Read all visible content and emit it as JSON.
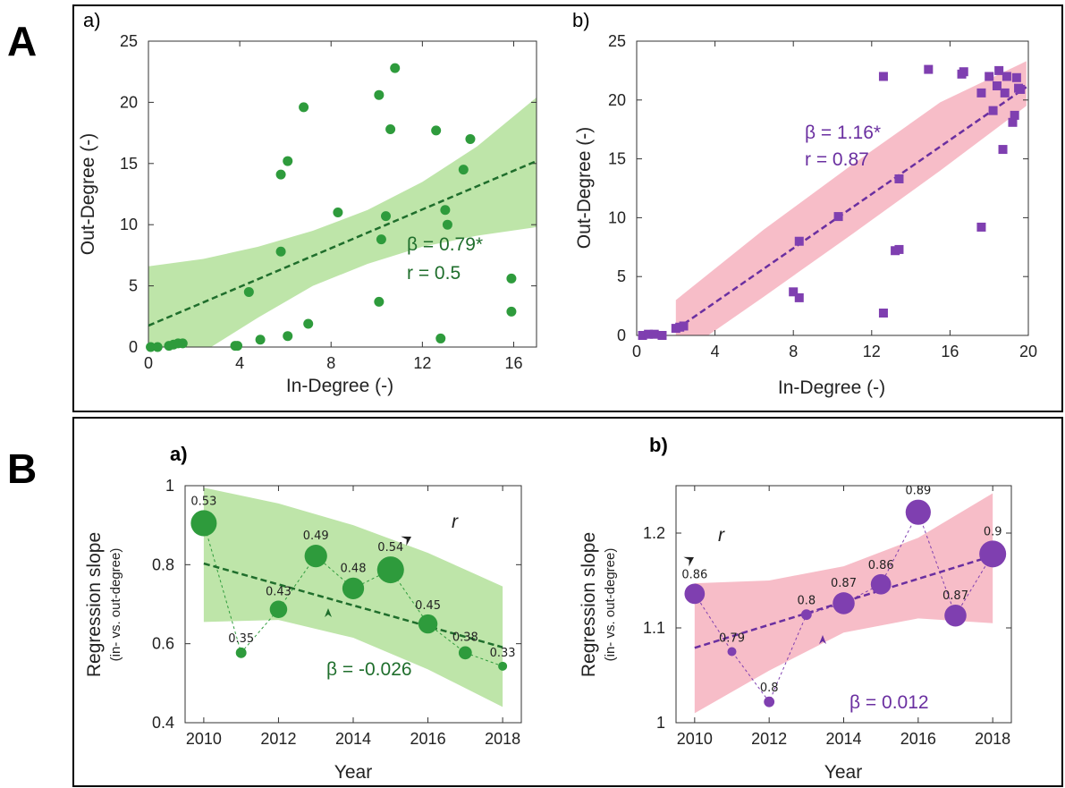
{
  "panels": {
    "A": {
      "letter": "A"
    },
    "B": {
      "letter": "B"
    }
  },
  "colors": {
    "green": "#2e9b3c",
    "green_dark": "#1f6e2c",
    "green_band": "#a8dc8c",
    "purple": "#7f3fb0",
    "purple_dark": "#6a2fa0",
    "pink_band": "#f4a7b5"
  },
  "chart_data": [
    {
      "id": "Aa",
      "type": "scatter",
      "sublabel": "a)",
      "xlabel": "In-Degree (-)",
      "ylabel": "Out-Degree (-)",
      "xlim": [
        0,
        17
      ],
      "ylim": [
        0,
        25
      ],
      "xticks": [
        0,
        4,
        8,
        12,
        16
      ],
      "yticks": [
        0,
        5,
        10,
        15,
        20,
        25
      ],
      "x": [
        0.1,
        0.4,
        0.9,
        1.1,
        1.3,
        1.5,
        3.8,
        3.9,
        4.4,
        4.9,
        5.8,
        5.8,
        6.1,
        6.1,
        6.8,
        7.0,
        8.3,
        10.1,
        10.1,
        10.2,
        10.4,
        10.6,
        10.8,
        12.6,
        12.8,
        13.0,
        13.1,
        13.8,
        14.1,
        15.9,
        15.9
      ],
      "y": [
        0.0,
        0.0,
        0.1,
        0.2,
        0.3,
        0.3,
        0.1,
        0.1,
        4.5,
        0.6,
        14.1,
        7.8,
        15.2,
        0.9,
        19.6,
        1.9,
        11.0,
        20.6,
        3.7,
        8.8,
        10.7,
        17.8,
        22.8,
        17.7,
        0.7,
        11.2,
        10.0,
        14.5,
        17.0,
        5.6,
        2.9
      ],
      "fit": {
        "x0": 0,
        "y0": 1.75,
        "x1": 17,
        "y1": 15.2
      },
      "band_upper": [
        6.6,
        7.2,
        8.2,
        9.5,
        11.2,
        13.5,
        16.4,
        20.4
      ],
      "band_lower": [
        -3.2,
        -0.4,
        2.4,
        5.0,
        6.8,
        8.2,
        9.1,
        9.8
      ],
      "band_x": [
        0,
        2.4,
        4.8,
        7.2,
        9.6,
        12.0,
        14.4,
        17
      ],
      "annotation": {
        "beta": "β = 0.79*",
        "r": "r = 0.5"
      }
    },
    {
      "id": "Ab",
      "type": "scatter",
      "sublabel": "b)",
      "xlabel": "In-Degree (-)",
      "ylabel": "Out-Degree (-)",
      "xlim": [
        0,
        20
      ],
      "ylim": [
        0,
        25
      ],
      "xticks": [
        0,
        4,
        8,
        12,
        16,
        20
      ],
      "yticks": [
        0,
        5,
        10,
        15,
        20,
        25
      ],
      "x": [
        0.3,
        0.6,
        0.9,
        1.3,
        2.0,
        2.2,
        2.4,
        8.0,
        8.3,
        8.3,
        10.3,
        12.6,
        12.6,
        13.2,
        13.4,
        13.4,
        14.9,
        16.6,
        16.7,
        17.6,
        17.6,
        18.0,
        18.2,
        18.4,
        18.5,
        18.7,
        18.8,
        18.9,
        19.2,
        19.3,
        19.4,
        19.5,
        19.6
      ],
      "y": [
        0.0,
        0.1,
        0.1,
        0.0,
        0.6,
        0.7,
        0.8,
        3.7,
        3.2,
        8.0,
        10.1,
        22.0,
        1.9,
        7.2,
        7.3,
        13.3,
        22.6,
        22.2,
        22.4,
        20.6,
        9.2,
        22.0,
        19.1,
        21.2,
        22.5,
        15.8,
        20.6,
        22.0,
        18.1,
        18.7,
        21.9,
        21.0,
        20.9
      ],
      "fit": {
        "x0": 2.0,
        "y0": 0.5,
        "x1": 19.9,
        "y1": 21.1
      },
      "band_upper": [
        3.0,
        9.0,
        14.5,
        19.8,
        23.3
      ],
      "band_lower": [
        -1.9,
        3.3,
        8.6,
        14.0,
        19.5
      ],
      "band_x": [
        2.0,
        6.5,
        11.0,
        15.5,
        19.9
      ],
      "annotation": {
        "beta": "β = 1.16*",
        "r": "r = 0.87"
      }
    },
    {
      "id": "Ba",
      "type": "line",
      "sublabel": "a)",
      "xlabel": "Year",
      "ylabel": "Regression slope",
      "ylabel_sub": "(in- vs. out-degree)",
      "xlim": [
        2009.5,
        2018.5
      ],
      "ylim": [
        0.4,
        1.0
      ],
      "xticks": [
        2010,
        2012,
        2014,
        2016,
        2018
      ],
      "yticks": [
        0.4,
        0.6,
        0.8,
        1.0
      ],
      "ytick_labels": [
        "0.4",
        "0.6",
        "0.8",
        "1"
      ],
      "x": [
        2010,
        2011,
        2012,
        2013,
        2014,
        2015,
        2016,
        2017,
        2018
      ],
      "y": [
        0.905,
        0.577,
        0.687,
        0.822,
        0.74,
        0.787,
        0.65,
        0.577,
        0.543
      ],
      "r_values": [
        "0.53",
        "0.35",
        "0.43",
        "0.49",
        "0.48",
        "0.54",
        "0.45",
        "0.38",
        "0.33"
      ],
      "r_numeric": [
        0.53,
        0.35,
        0.43,
        0.49,
        0.48,
        0.54,
        0.45,
        0.38,
        0.33
      ],
      "fit": {
        "x0": 2010,
        "y0": 0.803,
        "x1": 2018,
        "y1": 0.591
      },
      "band_x": [
        2010,
        2012,
        2014,
        2016,
        2018
      ],
      "band_upper": [
        0.995,
        0.955,
        0.9,
        0.83,
        0.745
      ],
      "band_lower": [
        0.655,
        0.66,
        0.615,
        0.535,
        0.44
      ],
      "annotation": {
        "beta": "β = -0.026",
        "r_label": "r"
      }
    },
    {
      "id": "Bb",
      "type": "line",
      "sublabel": "b)",
      "xlabel": "Year",
      "ylabel": "Regression slope",
      "ylabel_sub": "(in- vs. out-degree)",
      "xlim": [
        2009.5,
        2018.5
      ],
      "ylim": [
        1.0,
        1.25
      ],
      "xticks": [
        2010,
        2012,
        2014,
        2016,
        2018
      ],
      "yticks": [
        1.0,
        1.1,
        1.2
      ],
      "ytick_labels": [
        "1",
        "1.1",
        "1.2"
      ],
      "x": [
        2010,
        2011,
        2012,
        2013,
        2014,
        2015,
        2016,
        2017,
        2018
      ],
      "y": [
        1.136,
        1.075,
        1.022,
        1.114,
        1.126,
        1.146,
        1.222,
        1.113,
        1.178
      ],
      "r_values": [
        "0.86",
        "0.79",
        "0.8",
        "0.8",
        "0.87",
        "0.86",
        "0.89",
        "0.87",
        "0.9"
      ],
      "r_numeric": [
        0.86,
        0.79,
        0.8,
        0.8,
        0.87,
        0.86,
        0.89,
        0.87,
        0.9
      ],
      "fit": {
        "x0": 2010,
        "y0": 1.079,
        "x1": 2018,
        "y1": 1.176
      },
      "band_x": [
        2010,
        2012,
        2014,
        2016,
        2018
      ],
      "band_upper": [
        1.147,
        1.15,
        1.165,
        1.195,
        1.242
      ],
      "band_lower": [
        1.01,
        1.055,
        1.095,
        1.11,
        1.105
      ],
      "annotation": {
        "beta": "β = 0.012",
        "r_label": "r"
      }
    }
  ]
}
